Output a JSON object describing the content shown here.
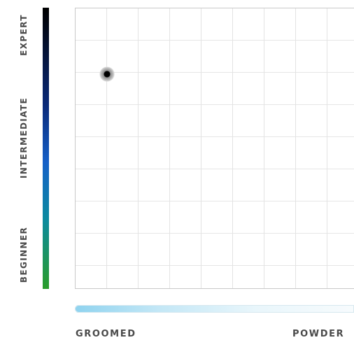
{
  "y_axis": {
    "labels": {
      "expert": "EXPERT",
      "intermediate": "INTERMEDIATE",
      "beginner": "BEGINNER"
    },
    "gradient_colors": [
      "#000000",
      "#0a2a7a",
      "#1560c8",
      "#0b8aa0",
      "#2a9d2a"
    ]
  },
  "x_axis": {
    "labels": {
      "left": "GROOMED",
      "right": "POWDER"
    },
    "gradient_colors": [
      "#8fd3ef",
      "#e9f6fb"
    ]
  },
  "marker": {
    "skill_level": "expert",
    "terrain": "groomed",
    "color": "#000000"
  }
}
